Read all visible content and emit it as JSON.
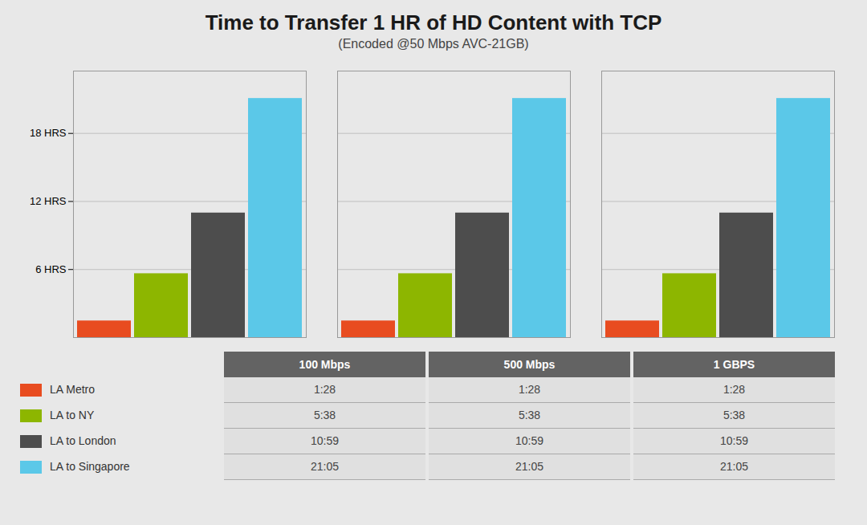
{
  "chart_data": {
    "type": "bar",
    "title": "Time to Transfer 1 HR of HD Content with TCP",
    "subtitle": "(Encoded @50 Mbps AVC-21GB)",
    "categories": [
      "100 Mbps",
      "500 Mbps",
      "1 GBPS"
    ],
    "series": [
      {
        "name": "LA Metro",
        "color": "#e84c20",
        "values": [
          1.467,
          1.467,
          1.467
        ],
        "value_labels": [
          "1:28",
          "1:28",
          "1:28"
        ]
      },
      {
        "name": "LA to NY",
        "color": "#8db600",
        "values": [
          5.633,
          5.633,
          5.633
        ],
        "value_labels": [
          "5:38",
          "5:38",
          "5:38"
        ]
      },
      {
        "name": "LA to London",
        "color": "#4d4d4d",
        "values": [
          10.983,
          10.983,
          10.983
        ],
        "value_labels": [
          "10:59",
          "10:59",
          "10:59"
        ]
      },
      {
        "name": "LA to Singapore",
        "color": "#5bc8e8",
        "values": [
          21.083,
          21.083,
          21.083
        ],
        "value_labels": [
          "21:05",
          "21:05",
          "21:05"
        ]
      }
    ],
    "ylim": [
      0,
      23.5
    ],
    "yticks": [
      {
        "value": 6,
        "label": "6 HRS"
      },
      {
        "value": 12,
        "label": "12 HRS"
      },
      {
        "value": 18,
        "label": "18 HRS"
      }
    ],
    "grid": true,
    "tick_labels": "y"
  }
}
